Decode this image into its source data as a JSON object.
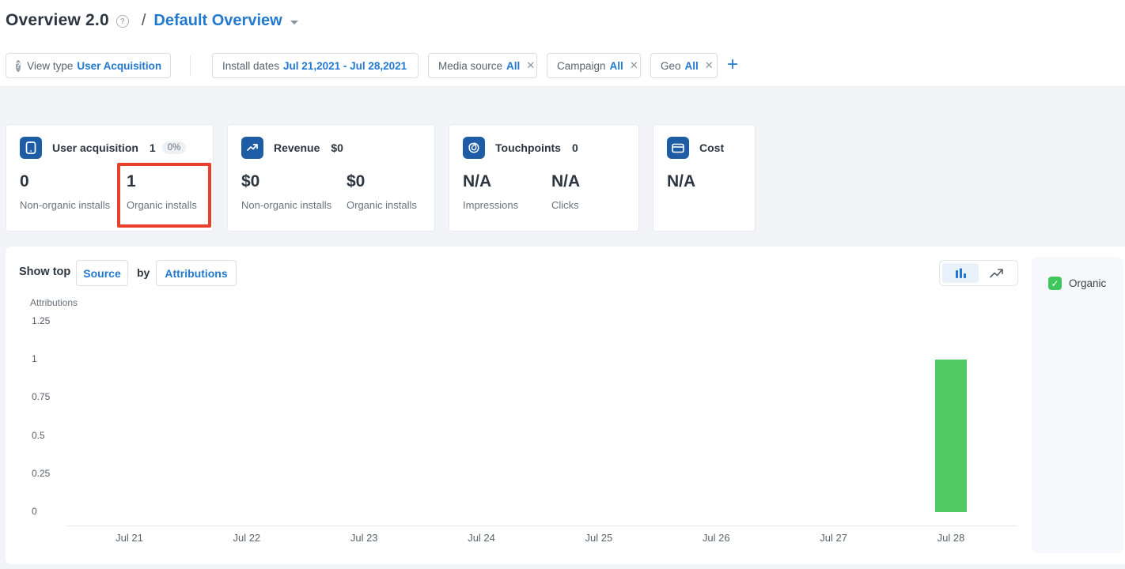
{
  "header": {
    "title": "Overview 2.0",
    "help_icon": "help-circle-icon",
    "breadcrumb_separator": "/",
    "breadcrumb_current": "Default Overview"
  },
  "filters": {
    "view_type": {
      "label": "View type",
      "value": "User Acquisition"
    },
    "install_dates": {
      "label": "Install dates",
      "value": "Jul 21,2021 - Jul 28,2021"
    },
    "chips": [
      {
        "label": "Media source",
        "value": "All",
        "close": "✕"
      },
      {
        "label": "Campaign",
        "value": "All",
        "close": "✕"
      },
      {
        "label": "Geo",
        "value": "All",
        "close": "✕"
      }
    ],
    "add_filter": "+"
  },
  "cards": [
    {
      "icon": "mobile-icon",
      "title": "User acquisition",
      "header_value": "1",
      "badge": "0%",
      "stats": [
        {
          "value": "0",
          "label": "Non-organic installs"
        },
        {
          "value": "1",
          "label": "Organic installs"
        }
      ]
    },
    {
      "icon": "trend-up-icon",
      "title": "Revenue",
      "header_value": "$0",
      "stats": [
        {
          "value": "$0",
          "label": "Non-organic installs"
        },
        {
          "value": "$0",
          "label": "Organic installs"
        }
      ]
    },
    {
      "icon": "touchpoint-spiral-icon",
      "title": "Touchpoints",
      "header_value": "0",
      "stats": [
        {
          "value": "N/A",
          "label": "Impressions"
        },
        {
          "value": "N/A",
          "label": "Clicks"
        }
      ]
    },
    {
      "icon": "credit-card-icon",
      "title": "Cost",
      "stats": [
        {
          "value": "N/A",
          "label": ""
        }
      ]
    }
  ],
  "chart_section": {
    "show_top_label": "Show top",
    "dimension_value": "Source",
    "by_label": "by",
    "metric_value": "Attributions",
    "toggle": {
      "bar_icon": "bar-chart-icon",
      "line_icon": "line-chart-icon",
      "active": "bar"
    },
    "legend": [
      {
        "label": "Organic",
        "checked": true,
        "checkmark": "✓"
      }
    ]
  },
  "chart_data": {
    "type": "bar",
    "title": "",
    "xlabel": "",
    "ylabel": "Attributions",
    "categories": [
      "Jul 21",
      "Jul 22",
      "Jul 23",
      "Jul 24",
      "Jul 25",
      "Jul 26",
      "Jul 27",
      "Jul 28"
    ],
    "series": [
      {
        "name": "Organic",
        "color": "#52ca63",
        "values": [
          0,
          0,
          0,
          0,
          0,
          0,
          0,
          1
        ]
      }
    ],
    "yticks": [
      0,
      0.25,
      0.5,
      0.75,
      1,
      1.25
    ],
    "ylim": [
      0,
      1.25
    ],
    "grid": false,
    "legend_position": "right"
  },
  "colors": {
    "accent_blue": "#2279d0",
    "icon_bg_blue": "#1e5da6",
    "bar_green": "#52ca63",
    "checkbox_green": "#3fc75c",
    "annotation_red": "#e8402c",
    "page_gray": "#f3f4f7",
    "legend_panel_gray": "#f7f8fb"
  }
}
